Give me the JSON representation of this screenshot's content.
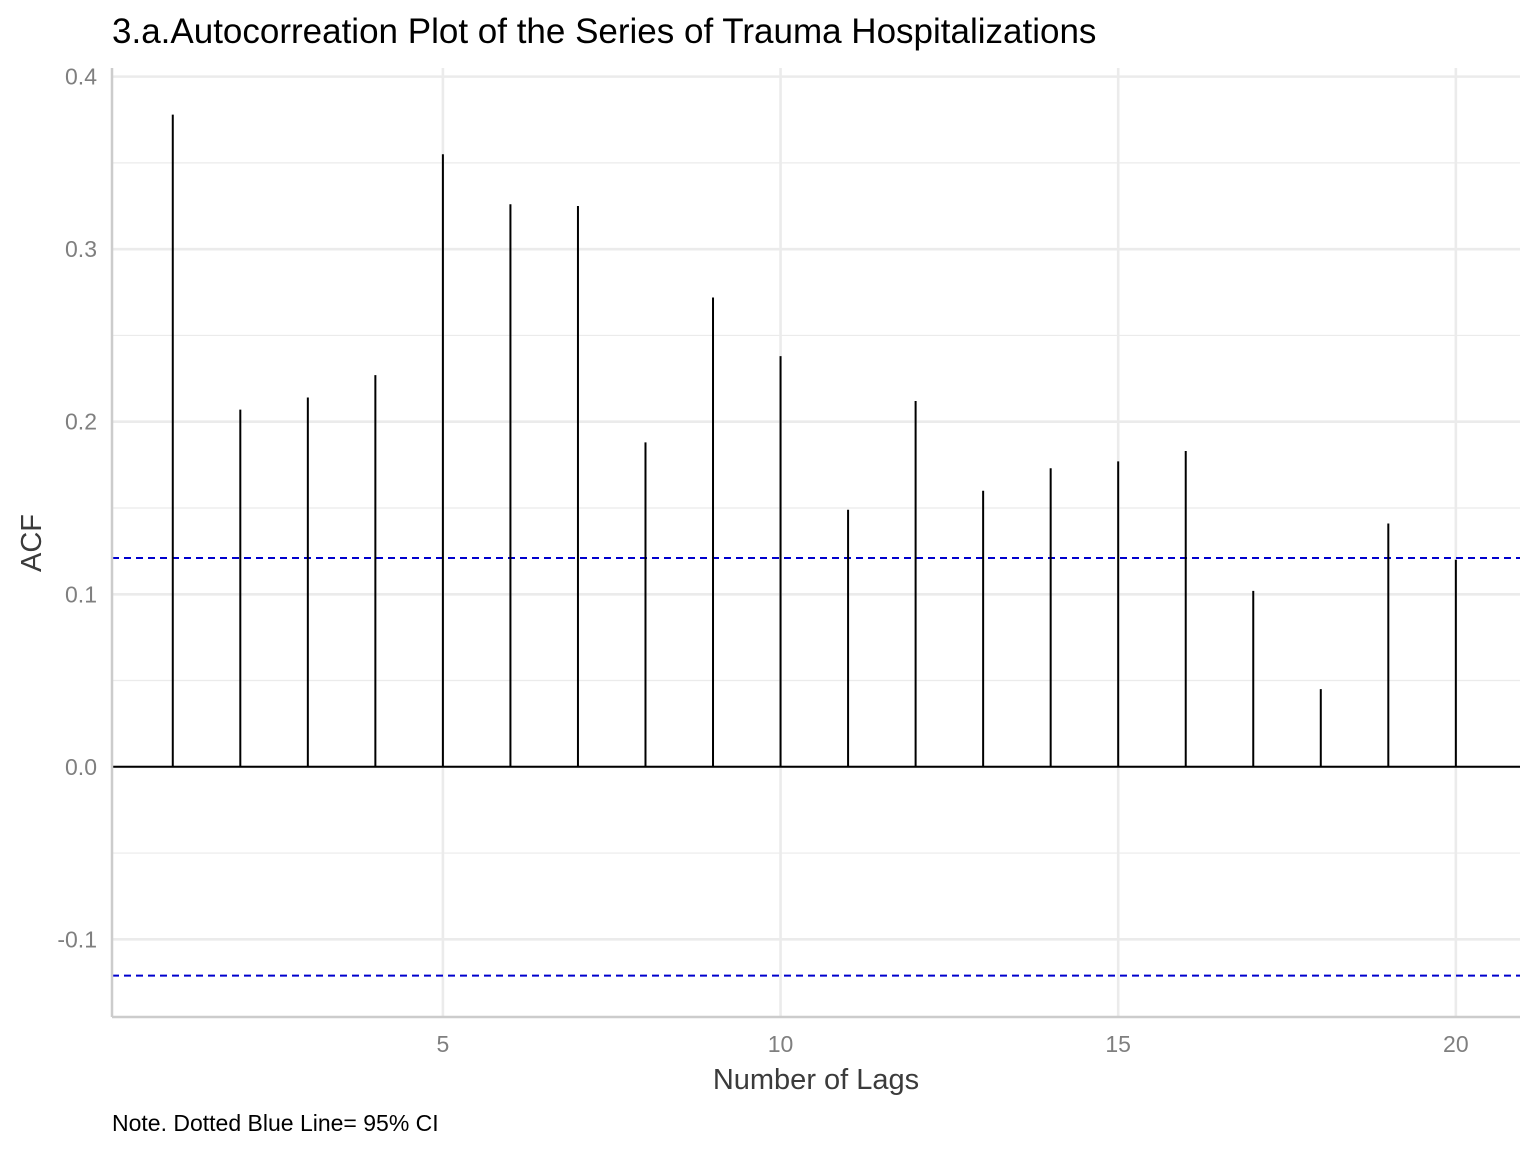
{
  "chart_data": {
    "type": "bar",
    "title": "3.a.Autocorreation Plot of the Series of Trauma Hospitalizations",
    "xlabel": "Number of Lags",
    "ylabel": "ACF",
    "caption": "Note. Dotted Blue Line= 95% CI",
    "x": [
      1,
      2,
      3,
      4,
      5,
      6,
      7,
      8,
      9,
      10,
      11,
      12,
      13,
      14,
      15,
      16,
      17,
      18,
      19,
      20
    ],
    "values": [
      0.378,
      0.207,
      0.214,
      0.227,
      0.355,
      0.326,
      0.325,
      0.188,
      0.272,
      0.238,
      0.149,
      0.212,
      0.16,
      0.173,
      0.177,
      0.183,
      0.102,
      0.045,
      0.141,
      0.12
    ],
    "confidence_bounds": [
      0.121,
      -0.121
    ],
    "xlim": [
      0.1,
      20.95
    ],
    "ylim": [
      -0.145,
      0.405
    ],
    "x_ticks": [
      "5",
      "10",
      "15",
      "20"
    ],
    "y_ticks": [
      "-0.1",
      "0.0",
      "0.1",
      "0.2",
      "0.3",
      "0.4"
    ],
    "grid": true,
    "colors": {
      "bars": "#000000",
      "confidence_line": "#0000cd",
      "grid": "#ebebeb",
      "axis": "#cccccc"
    }
  }
}
